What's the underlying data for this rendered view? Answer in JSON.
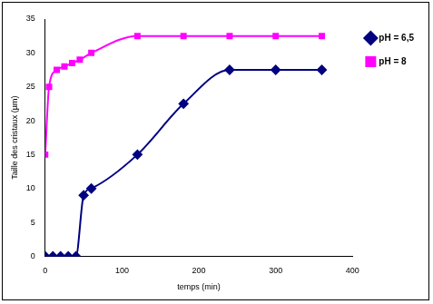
{
  "chart_data": {
    "type": "line",
    "x_label": "temps (min)",
    "y_label": "Taille des cristaux (µm)",
    "xlim": [
      0,
      400
    ],
    "xticks": [
      0,
      100,
      200,
      300,
      400
    ],
    "ylim": [
      0,
      35
    ],
    "yticks": [
      0,
      5,
      10,
      15,
      20,
      25,
      30,
      35
    ],
    "grid": false,
    "legend": "right",
    "series": [
      {
        "name": "pH = 6,5",
        "color": "#000080",
        "marker": "diamond",
        "x": [
          0,
          10,
          20,
          30,
          40,
          50,
          60,
          120,
          180,
          240,
          300,
          360
        ],
        "values": [
          0,
          0,
          0,
          0,
          0,
          9,
          10,
          15,
          22.5,
          27.5,
          27.5,
          27.5
        ]
      },
      {
        "name": "pH = 8",
        "color": "#ff00ff",
        "marker": "square",
        "x": [
          0,
          5,
          15,
          25,
          35,
          45,
          60,
          120,
          180,
          240,
          300,
          360
        ],
        "values": [
          15,
          25,
          27.5,
          28,
          28.5,
          29,
          30,
          32.5,
          32.5,
          32.5,
          32.5,
          32.5
        ]
      }
    ]
  }
}
